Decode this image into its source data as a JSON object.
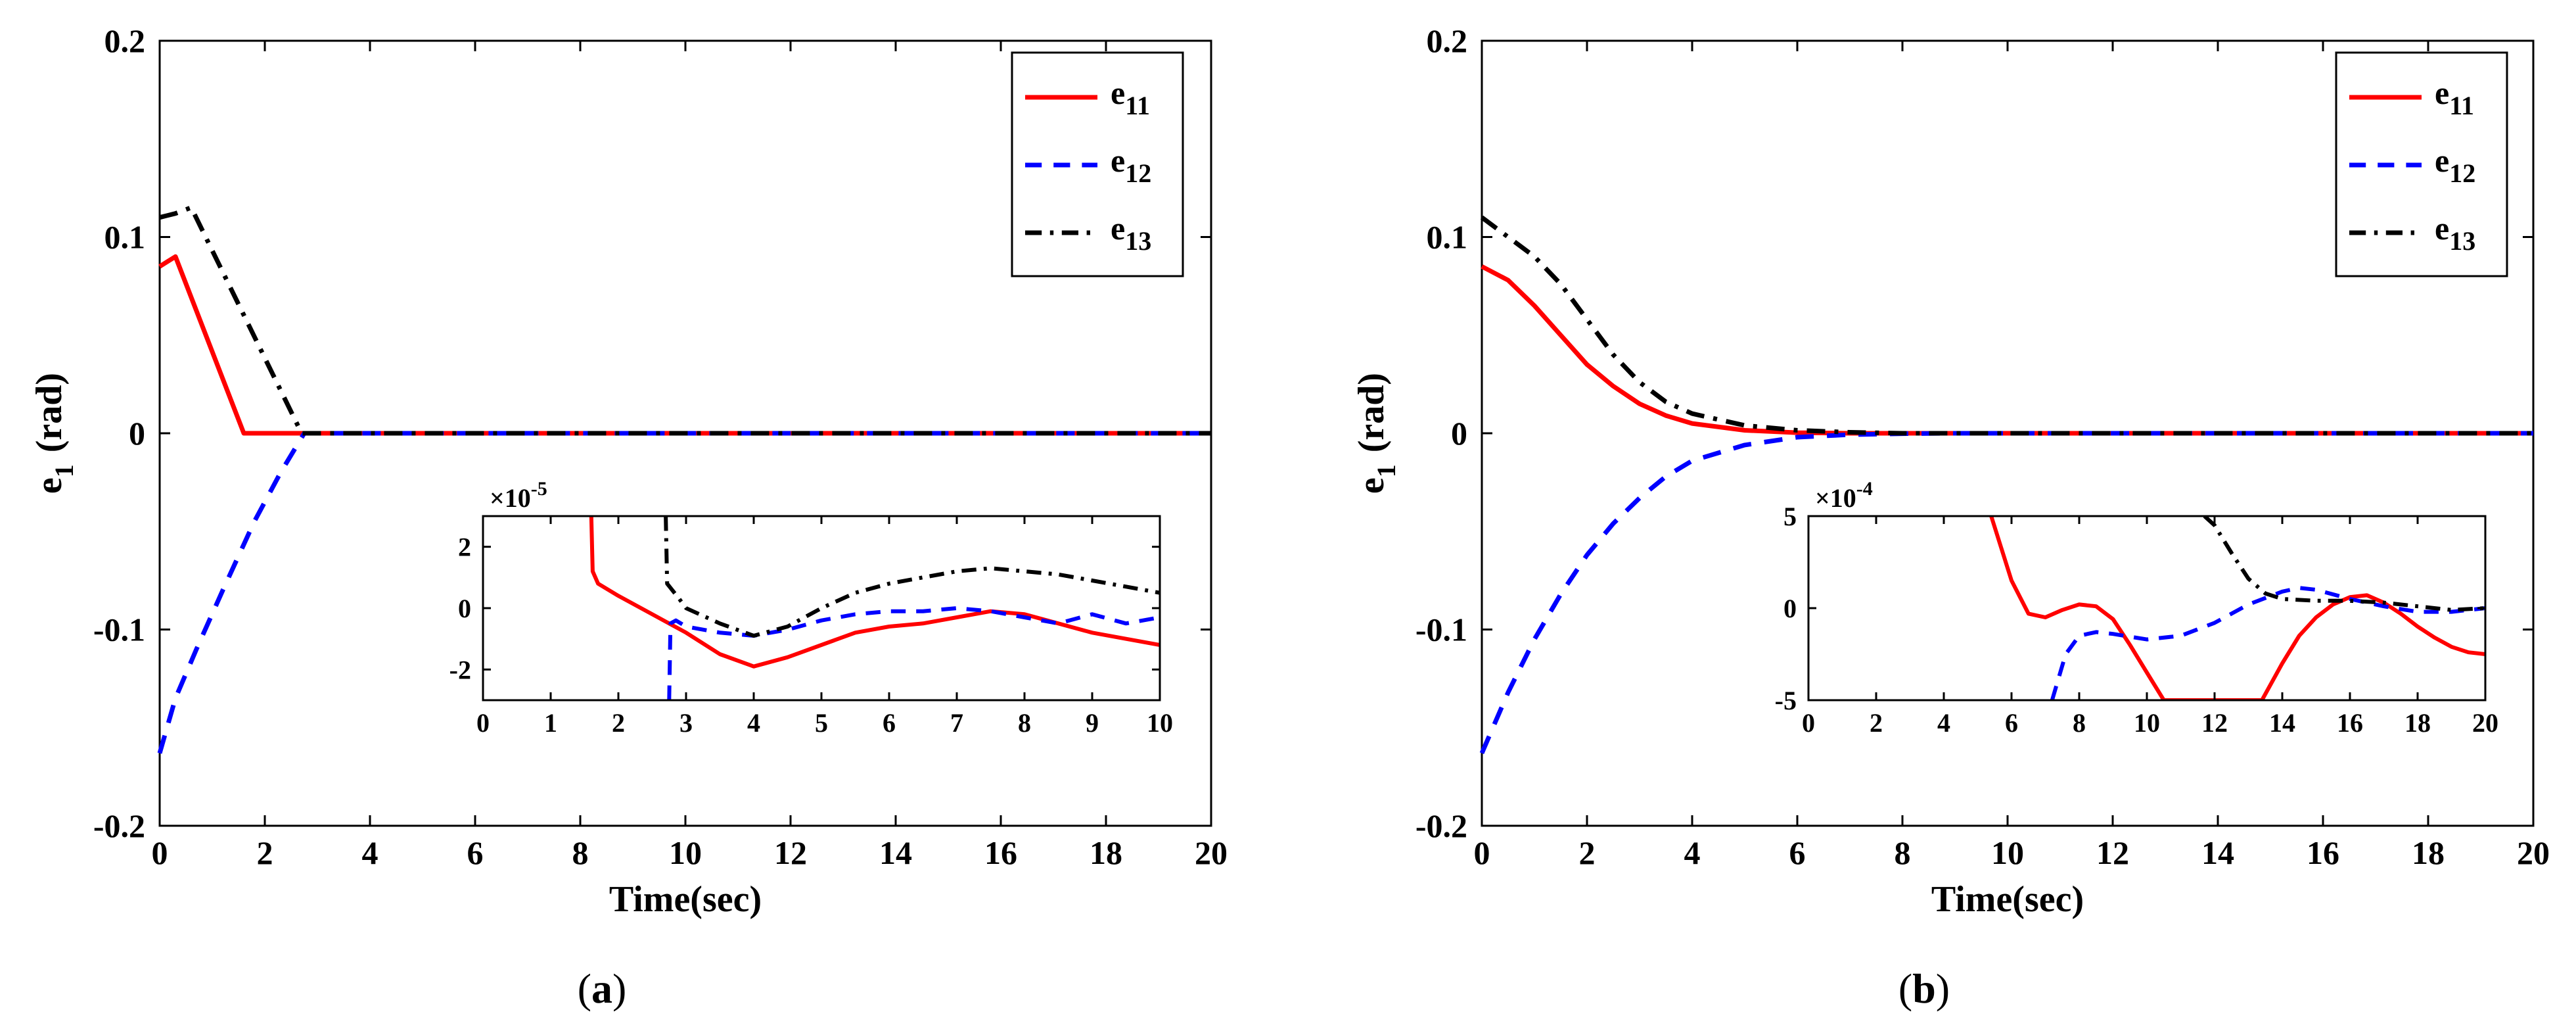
{
  "chart_data": [
    {
      "type": "line",
      "caption": "(a)",
      "caption_letter": "a",
      "xlabel": "Time(sec)",
      "ylabel_main": "e",
      "ylabel_sub": "1",
      "ylabel_unit": "(rad)",
      "xlim": [
        0,
        20
      ],
      "ylim": [
        -0.2,
        0.2
      ],
      "xticks": [
        "0",
        "2",
        "4",
        "6",
        "8",
        "10",
        "12",
        "14",
        "16",
        "18",
        "20"
      ],
      "yticks": [
        "-0.2",
        "-0.1",
        "0",
        "0.1",
        "0.2"
      ],
      "grid": false,
      "legend_position": "top-right",
      "series": [
        {
          "name": "e",
          "sub": "11",
          "color": "#ff0000",
          "dash": "solid",
          "x": [
            0,
            0.3,
            1.6,
            20
          ],
          "y": [
            0.085,
            0.09,
            0,
            0
          ]
        },
        {
          "name": "e",
          "sub": "12",
          "color": "#0000ff",
          "dash": "dashed",
          "x": [
            0,
            0.3,
            0.7,
            1.2,
            1.8,
            2.3,
            2.75,
            20
          ],
          "y": [
            -0.163,
            -0.135,
            -0.11,
            -0.08,
            -0.045,
            -0.02,
            0,
            0
          ]
        },
        {
          "name": "e",
          "sub": "13",
          "color": "#000000",
          "dash": "dashdot",
          "x": [
            0,
            0.3,
            0.6,
            2.7,
            20
          ],
          "y": [
            0.11,
            0.112,
            0.115,
            0,
            0
          ]
        }
      ],
      "inset": {
        "xlim": [
          0,
          10
        ],
        "ylim": [
          -3,
          3
        ],
        "xticks": [
          "0",
          "1",
          "2",
          "3",
          "4",
          "5",
          "6",
          "7",
          "8",
          "9",
          "10"
        ],
        "yticks": [
          "-2",
          "0",
          "2"
        ],
        "exponent_base": "×10",
        "exponent_power": "-5",
        "series": [
          {
            "name": "e11",
            "color": "#ff0000",
            "dash": "solid",
            "x": [
              1.6,
              1.62,
              1.7,
              2,
              2.5,
              3,
              3.5,
              4,
              4.5,
              5,
              5.5,
              6,
              6.5,
              7,
              7.5,
              8,
              8.5,
              9,
              9.5,
              10
            ],
            "y": [
              3,
              1.2,
              0.8,
              0.4,
              -0.2,
              -0.8,
              -1.5,
              -1.9,
              -1.6,
              -1.2,
              -0.8,
              -0.6,
              -0.5,
              -0.3,
              -0.1,
              -0.2,
              -0.5,
              -0.8,
              -1,
              -1.2
            ]
          },
          {
            "name": "e12",
            "color": "#0000ff",
            "dash": "dashed",
            "x": [
              2.75,
              2.77,
              2.85,
              3,
              3.5,
              4,
              4.5,
              5,
              5.5,
              6,
              6.5,
              7,
              7.5,
              8,
              8.5,
              9,
              9.5,
              10
            ],
            "y": [
              -3,
              -0.5,
              -0.4,
              -0.6,
              -0.8,
              -0.9,
              -0.7,
              -0.4,
              -0.2,
              -0.1,
              -0.1,
              0,
              -0.1,
              -0.3,
              -0.5,
              -0.2,
              -0.5,
              -0.3
            ]
          },
          {
            "name": "e13",
            "color": "#000000",
            "dash": "dashdot",
            "x": [
              2.7,
              2.72,
              2.9,
              3,
              3.5,
              4,
              4.5,
              5,
              5.5,
              6,
              6.5,
              7,
              7.5,
              8,
              8.5,
              9,
              9.5,
              10
            ],
            "y": [
              3,
              0.8,
              0.3,
              0,
              -0.5,
              -0.9,
              -0.6,
              0,
              0.5,
              0.8,
              1.0,
              1.2,
              1.3,
              1.2,
              1.1,
              0.9,
              0.7,
              0.5
            ]
          }
        ]
      }
    },
    {
      "type": "line",
      "caption": "(b)",
      "caption_letter": "b",
      "xlabel": "Time(sec)",
      "ylabel_main": "e",
      "ylabel_sub": "1",
      "ylabel_unit": "(rad)",
      "xlim": [
        0,
        20
      ],
      "ylim": [
        -0.2,
        0.2
      ],
      "xticks": [
        "0",
        "2",
        "4",
        "6",
        "8",
        "10",
        "12",
        "14",
        "16",
        "18",
        "20"
      ],
      "yticks": [
        "-0.2",
        "-0.1",
        "0",
        "0.1",
        "0.2"
      ],
      "grid": false,
      "legend_position": "top-right",
      "series": [
        {
          "name": "e",
          "sub": "11",
          "color": "#ff0000",
          "dash": "solid",
          "x": [
            0,
            0.5,
            1,
            1.5,
            2,
            2.5,
            3,
            3.5,
            4,
            5,
            6,
            7,
            8,
            20
          ],
          "y": [
            0.085,
            0.078,
            0.065,
            0.05,
            0.035,
            0.024,
            0.015,
            0.009,
            0.005,
            0.0015,
            0.0003,
            0,
            0,
            0
          ]
        },
        {
          "name": "e",
          "sub": "12",
          "color": "#0000ff",
          "dash": "dashed",
          "x": [
            0,
            0.5,
            1,
            1.5,
            2,
            2.5,
            3,
            3.5,
            4,
            5,
            6,
            7,
            8,
            9,
            20
          ],
          "y": [
            -0.163,
            -0.132,
            -0.105,
            -0.082,
            -0.062,
            -0.046,
            -0.033,
            -0.022,
            -0.014,
            -0.006,
            -0.002,
            -0.0007,
            -0.0002,
            0,
            0
          ]
        },
        {
          "name": "e",
          "sub": "13",
          "color": "#000000",
          "dash": "dashdot",
          "x": [
            0,
            0.5,
            1,
            1.5,
            2,
            2.5,
            3,
            3.5,
            4,
            5,
            6,
            7,
            8,
            20
          ],
          "y": [
            0.11,
            0.1,
            0.09,
            0.076,
            0.058,
            0.04,
            0.026,
            0.016,
            0.01,
            0.004,
            0.0015,
            0.0005,
            0,
            0
          ]
        }
      ],
      "inset": {
        "xlim": [
          0,
          20
        ],
        "ylim": [
          -5,
          5
        ],
        "xticks": [
          "0",
          "2",
          "4",
          "6",
          "8",
          "10",
          "12",
          "14",
          "16",
          "18",
          "20"
        ],
        "yticks": [
          "-5",
          "0",
          "5"
        ],
        "exponent_base": "×10",
        "exponent_power": "-4",
        "series": [
          {
            "name": "e11",
            "color": "#ff0000",
            "dash": "solid",
            "x": [
              5.4,
              6,
              6.5,
              7,
              7.5,
              8,
              8.5,
              9,
              9.5,
              10,
              10.5,
              13.4,
              14,
              14.5,
              15,
              15.5,
              16,
              16.5,
              17,
              17.5,
              18,
              18.5,
              19,
              19.5,
              20
            ],
            "y": [
              5,
              1.5,
              -0.3,
              -0.5,
              -0.1,
              0.2,
              0.1,
              -0.6,
              -2,
              -3.5,
              -5,
              -5,
              -3,
              -1.5,
              -0.5,
              0.2,
              0.6,
              0.7,
              0.3,
              -0.3,
              -1,
              -1.6,
              -2.1,
              -2.4,
              -2.5
            ]
          },
          {
            "name": "e12",
            "color": "#0000ff",
            "dash": "dashed",
            "x": [
              7.2,
              7.6,
              8,
              8.5,
              9,
              10,
              11,
              12,
              13,
              14,
              14.5,
              15,
              16,
              17,
              18,
              19,
              20
            ],
            "y": [
              -5,
              -2.5,
              -1.5,
              -1.3,
              -1.4,
              -1.7,
              -1.5,
              -0.8,
              0.2,
              0.9,
              1.1,
              1.0,
              0.5,
              0.1,
              -0.2,
              -0.2,
              0
            ]
          },
          {
            "name": "e13",
            "color": "#000000",
            "dash": "dashdot",
            "x": [
              11.7,
              12,
              12.5,
              13,
              13.5,
              14,
              15,
              16,
              17,
              18,
              19,
              20
            ],
            "y": [
              5,
              4.5,
              3.0,
              1.6,
              0.8,
              0.5,
              0.4,
              0.4,
              0.3,
              0.1,
              -0.1,
              0
            ]
          }
        ]
      }
    }
  ]
}
